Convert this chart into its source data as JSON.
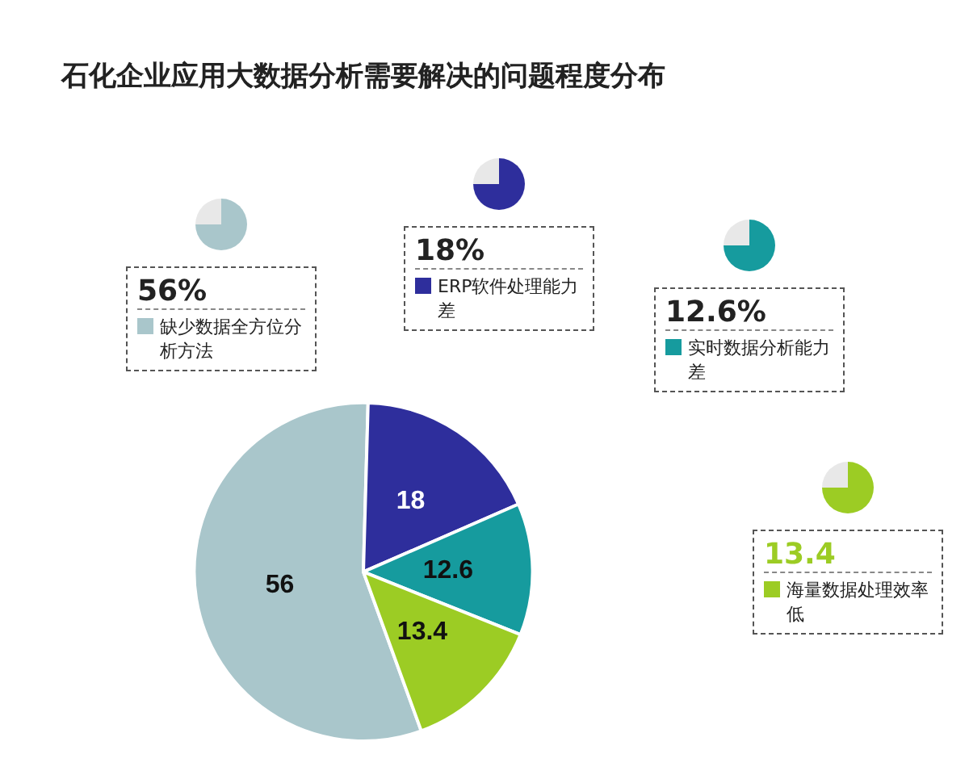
{
  "chart_data": {
    "type": "pie",
    "title": "石化企业应用大数据分析需要解决的问题程度分布",
    "categories": [
      "缺少数据全方位分析方法",
      "ERP软件处理能力差",
      "实时数据分析能力差",
      "海量数据处理效率低"
    ],
    "values": [
      56,
      18,
      12.6,
      13.4
    ],
    "colors": [
      "#a9c6cb",
      "#2e2e9c",
      "#169b9e",
      "#9ccc24"
    ],
    "annotations": [
      "56%",
      "18%",
      "12.6%",
      "13.4"
    ],
    "data_labels": true,
    "legend": "top"
  }
}
